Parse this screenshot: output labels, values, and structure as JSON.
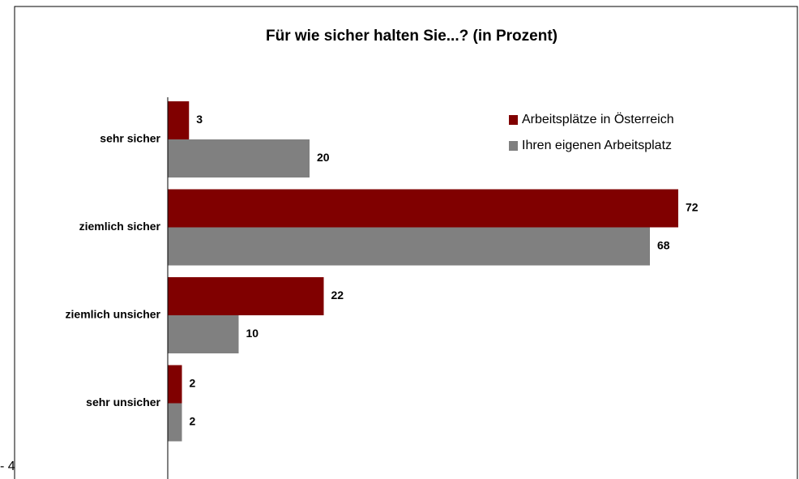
{
  "chart_data": {
    "type": "hbar",
    "title": "Für wie sicher halten Sie...? (in Prozent)",
    "categories": [
      "sehr sicher",
      "ziemlich sicher",
      "ziemlich unsicher",
      "sehr unsicher"
    ],
    "series": [
      {
        "name": "Arbeitsplätze in Österreich",
        "color": "#800000",
        "values": [
          3,
          72,
          22,
          2
        ]
      },
      {
        "name": "Ihren eigenen Arbeitsplatz",
        "color": "#808080",
        "values": [
          20,
          68,
          10,
          2
        ]
      }
    ],
    "xlim": [
      0,
      80
    ],
    "legend": "upper right",
    "annotations": [
      "- 4"
    ]
  }
}
